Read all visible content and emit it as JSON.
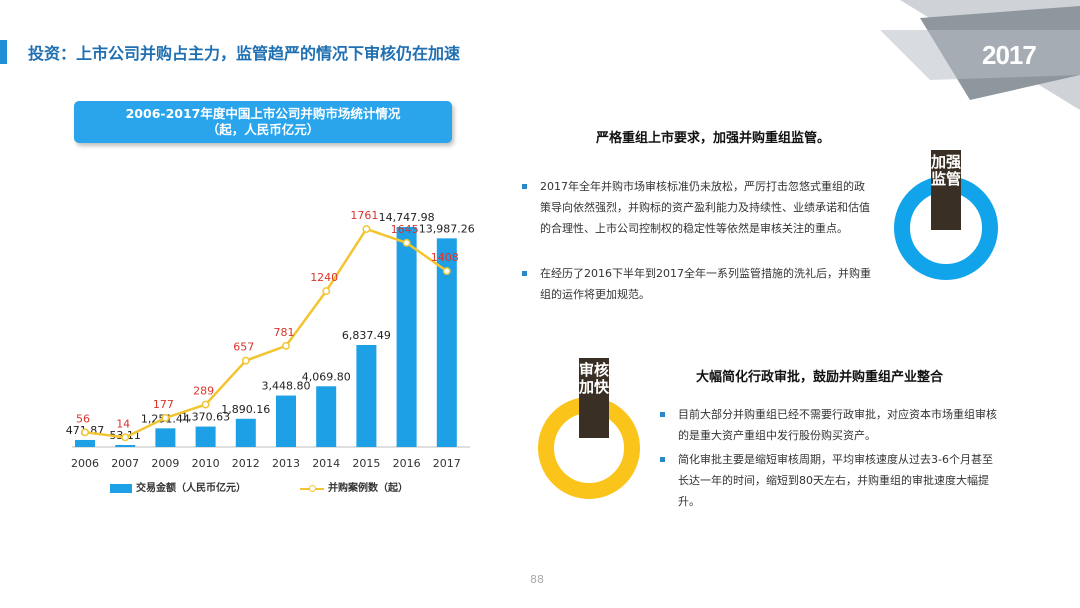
{
  "header": {
    "title": "投资：上市公司并购占主力，监管趋严的情况下审核仍在加速",
    "year_badge": "2017"
  },
  "chart_box": {
    "line1": "2006-2017年度中国上市公司并购市场统计情况",
    "line2": "（起，人民币亿元）"
  },
  "chart_data": {
    "type": "bar",
    "title": "2006-2017年度中国上市公司并购市场统计情况（起，人民币亿元）",
    "categories": [
      "2006",
      "2007",
      "2009",
      "2010",
      "2012",
      "2013",
      "2014",
      "2015",
      "2016",
      "2017"
    ],
    "series": [
      {
        "name": "交易金额（人民币亿元）",
        "type": "bar",
        "values": [
          471.87,
          53.11,
          1251.44,
          1370.63,
          1890.16,
          3448.8,
          4069.8,
          6837.49,
          14747.98,
          13987.26
        ],
        "labels": [
          "471.87",
          "53.11",
          "1,251.44",
          "1,370.63",
          "1,890.16",
          "3,448.80",
          "4,069.80",
          "6,837.49",
          "14,747.98",
          "13,987.26"
        ]
      },
      {
        "name": "并购案例数（起）",
        "type": "line",
        "values": [
          56,
          14,
          177,
          289,
          657,
          781,
          1240,
          1761,
          1645,
          1408
        ],
        "labels": [
          "56",
          "14",
          "177",
          "289",
          "657",
          "781",
          "1240",
          "1761",
          "1645",
          "1408"
        ]
      }
    ],
    "colors": {
      "bar": "#1ea0e6",
      "line": "#f2c530",
      "line_label": "#d9342b"
    },
    "grid": false,
    "legend": "bottom"
  },
  "legend": {
    "bar_label": "交易金额（人民币亿元）",
    "line_label": "并购案例数（起）"
  },
  "section1": {
    "heading": "严格重组上市要求，加强并购重组监管。",
    "badge": "加强监管",
    "bullets": [
      "2017年全年并购市场审核标准仍未放松，严厉打击忽悠式重组的政策导向依然强烈，并购标的资产盈利能力及持续性、业绩承诺和估值的合理性、上市公司控制权的稳定性等依然是审核关注的重点。",
      "在经历了2016下半年到2017全年一系列监管措施的洗礼后，并购重组的运作将更加规范。"
    ]
  },
  "section2": {
    "heading": "大幅简化行政审批，鼓励并购重组产业整合",
    "badge": "审核加快",
    "bullets": [
      "目前大部分并购重组已经不需要行政审批，对应资本市场重组审核的是重大资产重组中发行股份购买资产。",
      "简化审批主要是缩短审核周期，平均审核速度从过去3-6个月甚至长达一年的时间，缩短到80天左右，并购重组的审批速度大幅提升。"
    ]
  },
  "page_number": "88"
}
